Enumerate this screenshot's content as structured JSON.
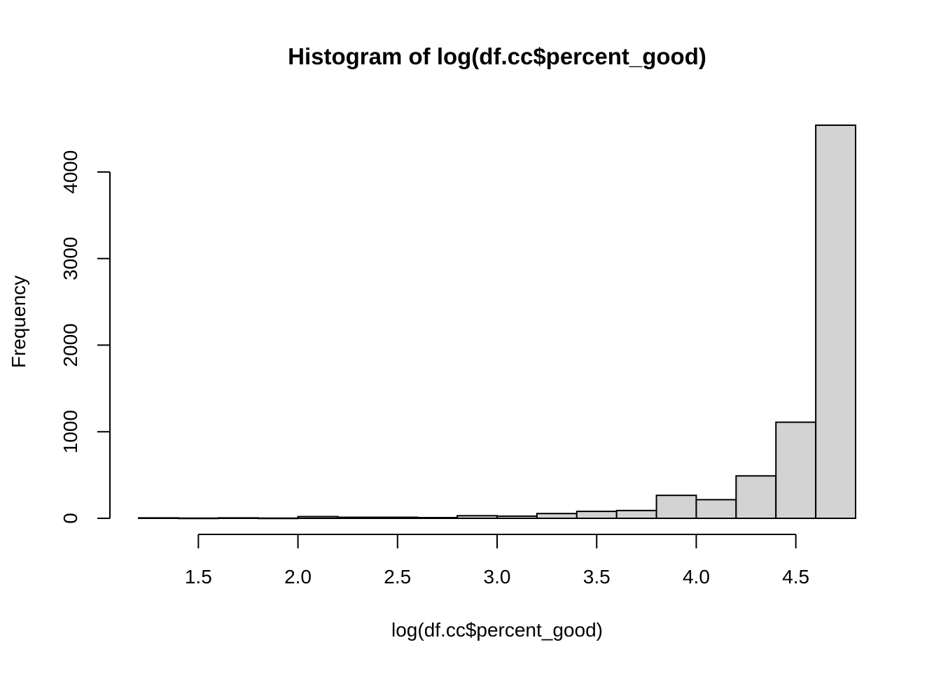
{
  "chart_data": {
    "type": "bar",
    "title": "Histogram of log(df.cc$percent_good)",
    "xlabel": "log(df.cc$percent_good)",
    "ylabel": "Frequency",
    "xlim": [
      1.2,
      4.8
    ],
    "ylim": [
      0,
      4540
    ],
    "bin_width": 0.2,
    "bin_starts": [
      1.2,
      1.4,
      1.6,
      1.8,
      2.0,
      2.2,
      2.4,
      2.6,
      2.8,
      3.0,
      3.2,
      3.4,
      3.6,
      3.8,
      4.0,
      4.2,
      4.4,
      4.6
    ],
    "values": [
      5,
      2,
      5,
      2,
      20,
      12,
      12,
      8,
      30,
      25,
      55,
      80,
      90,
      265,
      215,
      490,
      1110,
      4540
    ],
    "x_ticks": [
      1.5,
      2.0,
      2.5,
      3.0,
      3.5,
      4.0,
      4.5
    ],
    "x_tick_labels": [
      "1.5",
      "2.0",
      "2.5",
      "3.0",
      "3.5",
      "4.0",
      "4.5"
    ],
    "y_ticks": [
      0,
      1000,
      2000,
      3000,
      4000
    ],
    "y_tick_labels": [
      "0",
      "1000",
      "2000",
      "3000",
      "4000"
    ],
    "grid": false,
    "legend": "none",
    "bar_fill": "#d3d3d3",
    "bar_stroke": "#000000"
  }
}
